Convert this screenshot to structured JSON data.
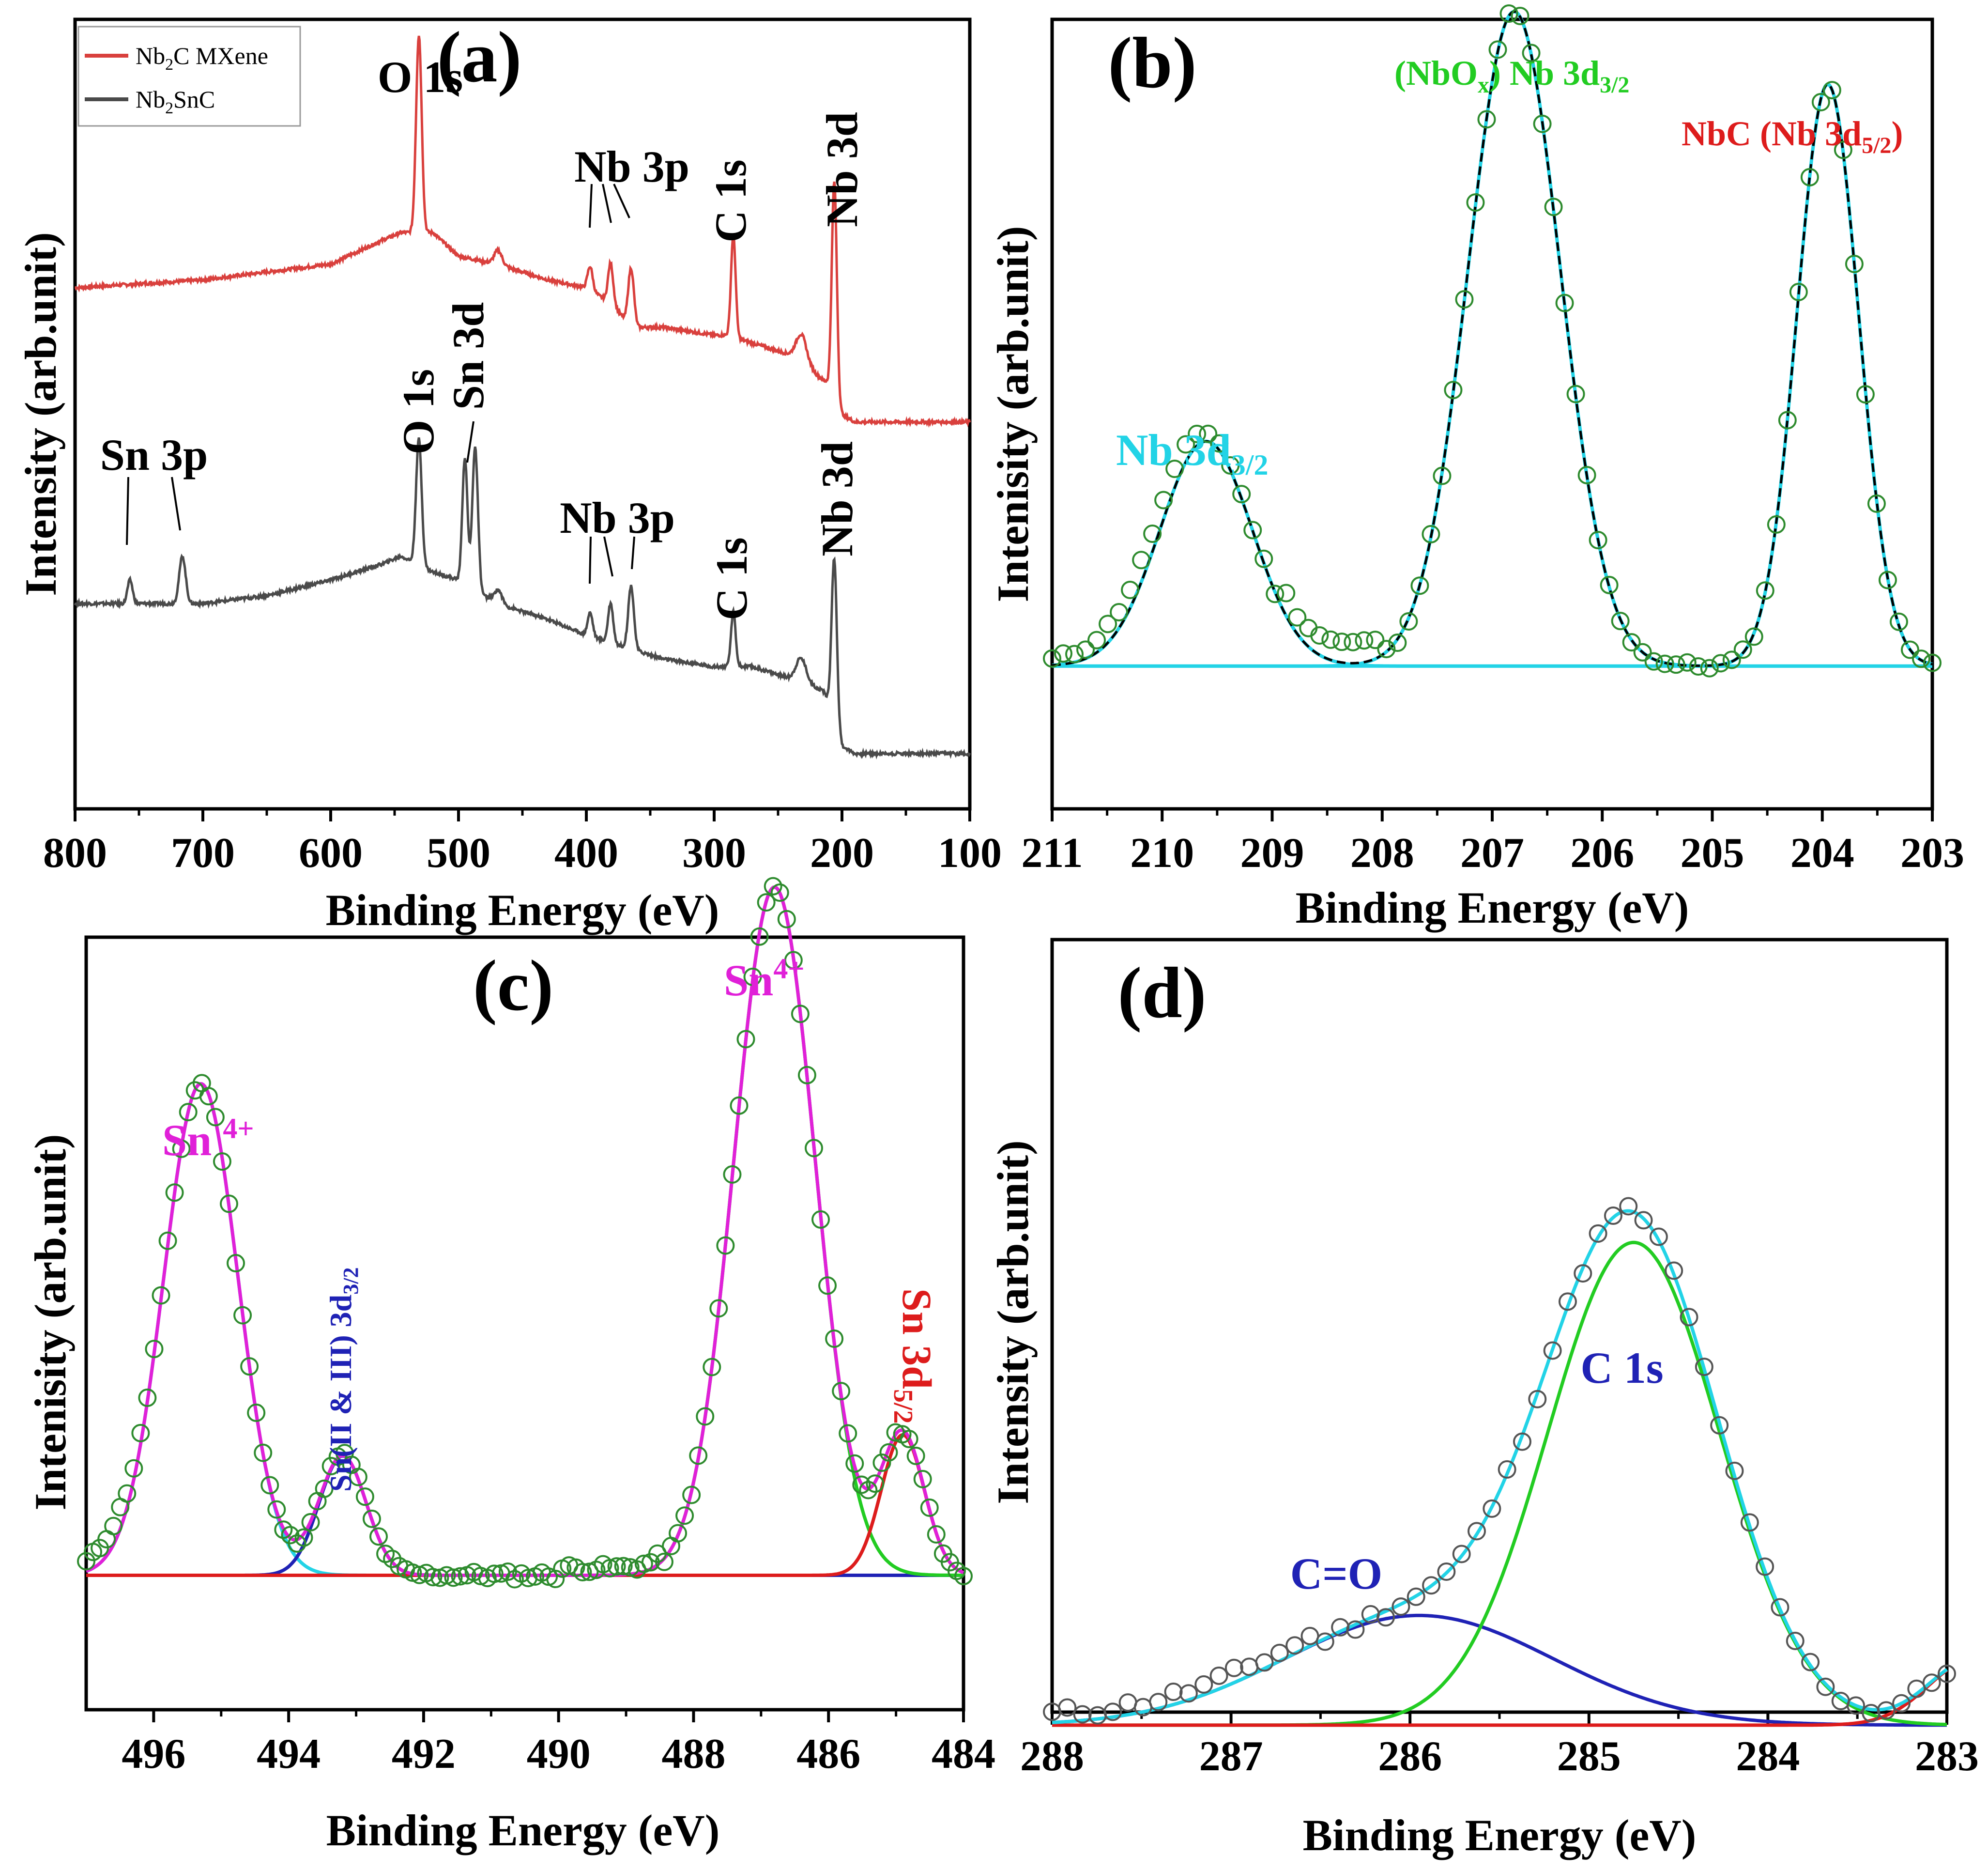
{
  "colors": {
    "nb2c": "#d9403d",
    "nb2snc": "#4a4a4a",
    "envelope": "#000000",
    "points": "#2e8b2e",
    "cyan": "#22d3e6",
    "green": "#22cc22",
    "blue": "#1f22b5",
    "red": "#dd1c1c",
    "magenta": "#e020d8"
  },
  "chart_data": [
    {
      "panel": "(a)",
      "type": "line",
      "xlabel": "Binding Energy (eV)",
      "ylabel": "Intensity (arb.unit)",
      "xlim": [
        800,
        100
      ],
      "x_reversed": true,
      "xticks": [
        800,
        700,
        600,
        500,
        400,
        300,
        200,
        100
      ],
      "legend": {
        "placement": "top-left",
        "entries": [
          "Nb2C MXene",
          "Nb2SnC"
        ]
      },
      "series": [
        {
          "name": "Nb2C MXene",
          "color_key": "nb2c",
          "baseline": [
            [
              800,
              0.66
            ],
            [
              700,
              0.67
            ],
            [
              600,
              0.69
            ],
            [
              560,
              0.72
            ],
            [
              545,
              0.73
            ],
            [
              520,
              0.73
            ],
            [
              500,
              0.7
            ],
            [
              470,
              0.69
            ],
            [
              430,
              0.67
            ],
            [
              400,
              0.66
            ],
            [
              390,
              0.65
            ],
            [
              380,
              0.64
            ],
            [
              370,
              0.62
            ],
            [
              360,
              0.61
            ],
            [
              340,
              0.61
            ],
            [
              300,
              0.6
            ],
            [
              290,
              0.6
            ],
            [
              270,
              0.59
            ],
            [
              250,
              0.58
            ],
            [
              230,
              0.57
            ],
            [
              220,
              0.55
            ],
            [
              212,
              0.54
            ],
            [
              208,
              0.52
            ],
            [
              200,
              0.5
            ],
            [
              190,
              0.49
            ],
            [
              150,
              0.49
            ],
            [
              100,
              0.49
            ]
          ],
          "peaks": [
            [
              531,
              0.25,
              2.2
            ],
            [
              469,
              0.018,
              3
            ],
            [
              397,
              0.03,
              2
            ],
            [
              381,
              0.05,
              2
            ],
            [
              365,
              0.07,
              2.2
            ],
            [
              285,
              0.13,
              1.8
            ],
            [
              232,
              0.03,
              4
            ],
            [
              206,
              0.28,
              2
            ]
          ]
        },
        {
          "name": "Nb2SnC",
          "color_key": "nb2snc",
          "baseline": [
            [
              800,
              0.26
            ],
            [
              760,
              0.26
            ],
            [
              700,
              0.26
            ],
            [
              650,
              0.27
            ],
            [
              600,
              0.29
            ],
            [
              560,
              0.31
            ],
            [
              545,
              0.32
            ],
            [
              520,
              0.3
            ],
            [
              500,
              0.29
            ],
            [
              470,
              0.26
            ],
            [
              430,
              0.24
            ],
            [
              400,
              0.22
            ],
            [
              380,
              0.21
            ],
            [
              360,
              0.2
            ],
            [
              340,
              0.19
            ],
            [
              300,
              0.18
            ],
            [
              270,
              0.18
            ],
            [
              250,
              0.17
            ],
            [
              230,
              0.16
            ],
            [
              215,
              0.15
            ],
            [
              208,
              0.13
            ],
            [
              200,
              0.08
            ],
            [
              190,
              0.07
            ],
            [
              150,
              0.07
            ],
            [
              100,
              0.07
            ]
          ],
          "peaks": [
            [
              757,
              0.03,
              2
            ],
            [
              716,
              0.06,
              2.5
            ],
            [
              531,
              0.16,
              2.2
            ],
            [
              495,
              0.16,
              2
            ],
            [
              487,
              0.18,
              2.2
            ],
            [
              469,
              0.018,
              3
            ],
            [
              397,
              0.03,
              2
            ],
            [
              381,
              0.05,
              2
            ],
            [
              365,
              0.08,
              2.2
            ],
            [
              285,
              0.07,
              1.8
            ],
            [
              232,
              0.03,
              4
            ],
            [
              206,
              0.2,
              2
            ]
          ]
        }
      ],
      "annotations": [
        "O 1s",
        "Nb 3p",
        "C 1s",
        "Nb 3d",
        "Sn 3p",
        "O 1s",
        "Sn 3d",
        "Nb 3p",
        "C 1s",
        "Nb 3d"
      ]
    },
    {
      "panel": "(b)",
      "type": "scatter",
      "xlabel": "Binding Energy (eV)",
      "ylabel": "Intenisity (arb.unit)",
      "xlim": [
        211,
        203
      ],
      "x_reversed": true,
      "xticks": [
        211,
        210,
        209,
        208,
        207,
        206,
        205,
        204,
        203
      ],
      "background": 0.15,
      "components": [
        {
          "center": 209.6,
          "height": 0.34,
          "sigma": 0.42,
          "color_key": "cyan"
        },
        {
          "center": 206.8,
          "height": 0.99,
          "sigma": 0.42,
          "color_key": "cyan"
        },
        {
          "center": 203.95,
          "height": 0.88,
          "sigma": 0.28,
          "color_key": "cyan"
        }
      ],
      "baselines": [
        {
          "from": 211,
          "to": 208.3,
          "color_key": "green"
        },
        {
          "from": 208.3,
          "to": 208.0,
          "color_key": "red"
        },
        {
          "from": 208.0,
          "to": 203,
          "color_key": "blue"
        }
      ],
      "data_points": {
        "x_range": [
          211,
          203
        ],
        "count": 80
      },
      "annotations": [
        "Nb 3d3/2",
        "(NbOx) Nb 3d3/2",
        "NbC (Nb 3d5/2)"
      ]
    },
    {
      "panel": "(c)",
      "type": "scatter",
      "xlabel": "Binding Energy (eV)",
      "ylabel": "Intenisity (arb.unit)",
      "xlim": [
        497,
        484
      ],
      "x_reversed": true,
      "xticks": [
        496,
        494,
        492,
        490,
        488,
        486,
        484
      ],
      "background": 0.15,
      "components": [
        {
          "center": 495.3,
          "height": 0.7,
          "sigma": 0.55,
          "color_key": "cyan"
        },
        {
          "center": 493.2,
          "height": 0.17,
          "sigma": 0.35,
          "color_key": "blue"
        },
        {
          "center": 486.8,
          "height": 0.98,
          "sigma": 0.6,
          "color_key": "green"
        },
        {
          "center": 484.9,
          "height": 0.2,
          "sigma": 0.32,
          "color_key": "red"
        }
      ],
      "envelope_color_key": "magenta",
      "data_points": {
        "x_range": [
          497,
          484
        ],
        "count": 130
      },
      "annotations": [
        "Sn 4+",
        "Sn(II & III) 3d3/2",
        "Sn4+",
        "Sn 3d5/2"
      ]
    },
    {
      "panel": "(d)",
      "type": "scatter",
      "xlabel": "Binding Energy (eV)",
      "ylabel": "Intensity (arb.unit)",
      "xlim": [
        288,
        283
      ],
      "x_reversed": true,
      "xticks": [
        288,
        287,
        286,
        285,
        284,
        283
      ],
      "background": 0.125,
      "components": [
        {
          "center": 285.95,
          "height": 0.1,
          "sigma": 0.75,
          "color_key": "blue"
        },
        {
          "center": 284.75,
          "height": 0.44,
          "sigma": 0.48,
          "color_key": "green"
        },
        {
          "center": 282.85,
          "height": 0.06,
          "sigma": 0.25,
          "color_key": "red"
        }
      ],
      "envelope_color_key": "cyan",
      "data_points": {
        "x_range": [
          288,
          283
        ],
        "count": 60
      },
      "annotations": [
        "C=O",
        "C 1s"
      ]
    }
  ],
  "panels": {
    "a": {
      "label": "(a)",
      "xlabel": "Binding Energy (eV)",
      "ylabel": "Intensity (arb.unit)",
      "legend": {
        "entry1_main": "Nb",
        "entry1_sub": "2",
        "entry1_rest": "C MXene",
        "entry2_main": "Nb",
        "entry2_sub": "2",
        "entry2_rest": "SnC"
      },
      "ann": {
        "o1s_top": "O 1s",
        "nb3p_top": "Nb 3p",
        "c1s_top": "C 1s",
        "nb3d_top": "Nb 3d",
        "sn3p": "Sn 3p",
        "o1s_bot": "O 1s",
        "sn3d": "Sn 3d",
        "nb3p_bot": "Nb 3p",
        "c1s_bot": "C 1s",
        "nb3d_bot": "Nb 3d"
      }
    },
    "b": {
      "label": "(b)",
      "xlabel": "Binding Energy (eV)",
      "ylabel": "Intenisity (arb.unit)",
      "ann": {
        "peak1_main": "Nb 3d",
        "peak1_sub": "3/2",
        "peak2_pre": "(NbO",
        "peak2_pre_sub": "x",
        "peak2_mid": ") Nb 3d",
        "peak2_sub": "3/2",
        "peak3_main": "NbC (Nb 3d",
        "peak3_sub": "5/2",
        "peak3_close": ")"
      }
    },
    "c": {
      "label": "(c)",
      "xlabel": "Binding Energy (eV)",
      "ylabel": "Intenisity (arb.unit)",
      "ann": {
        "sn4_left_main": "Sn ",
        "sn4_left_sup": "4+",
        "sn23_main": "Sn(II & III) 3d",
        "sn23_sub": "3/2",
        "sn4_right_main": "Sn",
        "sn4_right_sup": "4+",
        "sn3d52_main": "Sn 3d",
        "sn3d52_sub": "5/2"
      }
    },
    "d": {
      "label": "(d)",
      "xlabel": "Binding Energy (eV)",
      "ylabel": "Intensity (arb.unit)",
      "ann": {
        "co": "C=O",
        "c1s": "C 1s"
      }
    }
  }
}
